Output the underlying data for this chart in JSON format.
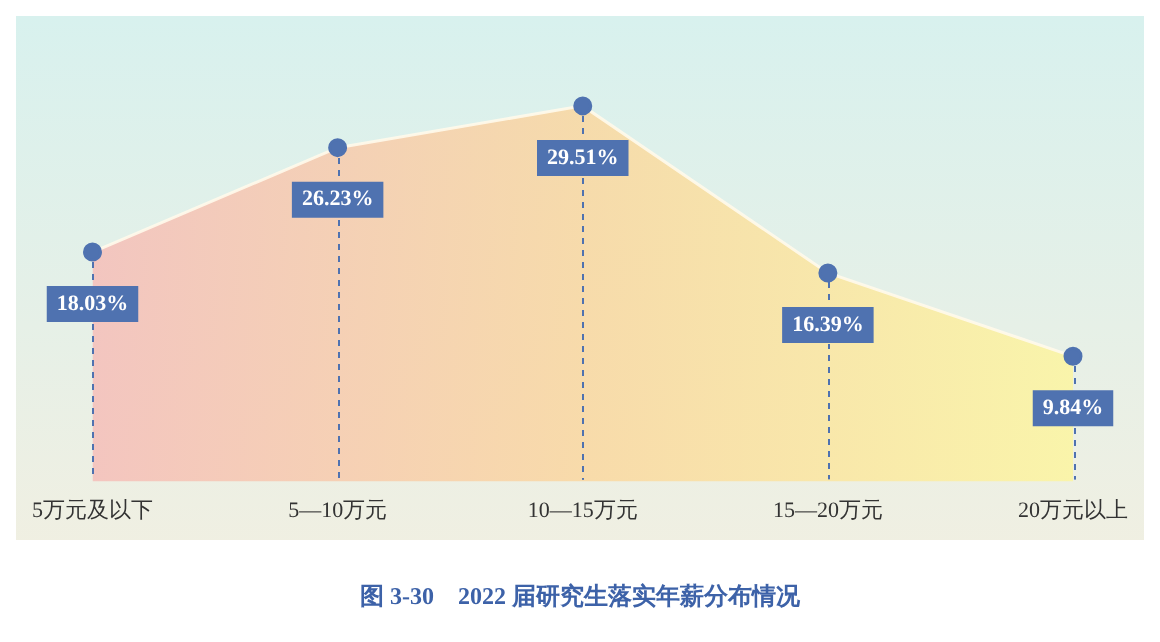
{
  "chart_data": {
    "type": "area",
    "title": "图 3-30    2022 届研究生落实年薪分布情况",
    "categories": [
      "5万元及以下",
      "5—10万元",
      "10—15万元",
      "15—20万元",
      "20万元以上"
    ],
    "series": [
      {
        "color": "#4f72b0",
        "values": [
          18.03,
          26.23,
          29.51,
          16.39,
          9.84
        ],
        "value_labels": [
          "18.03%",
          "26.23%",
          "29.51%",
          "16.39%",
          "9.84%"
        ]
      }
    ],
    "marker": "circle",
    "legend": false
  }
}
